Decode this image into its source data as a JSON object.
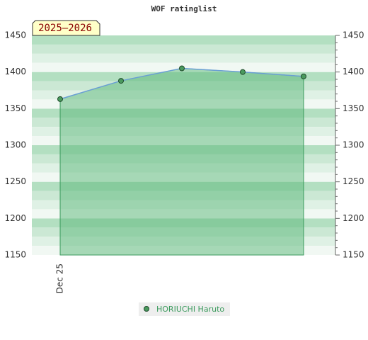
{
  "chart_data": {
    "type": "area",
    "title": "WOF ratinglist",
    "annotation": "2025–2026",
    "categories": [
      "Dec 25",
      null,
      null,
      null,
      null
    ],
    "series": [
      {
        "name": "HORIUCHI Haruto",
        "color": "#3a9a5c",
        "values": [
          1363,
          1388,
          1405,
          1400,
          1394
        ]
      }
    ],
    "ylim": [
      1150,
      1450
    ],
    "yticks": [
      1150,
      1200,
      1250,
      1300,
      1350,
      1400,
      1450
    ],
    "grid": true
  }
}
